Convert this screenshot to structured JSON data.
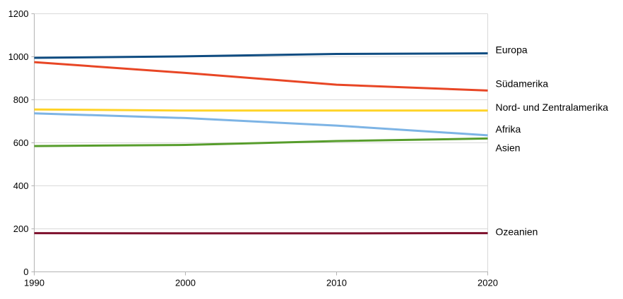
{
  "chart_data": {
    "type": "line",
    "x": [
      1990,
      2000,
      2010,
      2020
    ],
    "x_tick_labels": [
      "1990",
      "2000",
      "2010",
      "2020"
    ],
    "y_ticks": [
      0,
      200,
      400,
      600,
      800,
      1000,
      1200
    ],
    "y_tick_labels": [
      "0",
      "200",
      "400",
      "600",
      "800",
      "1000",
      "1200"
    ],
    "xlim": [
      1990,
      2020
    ],
    "ylim": [
      0,
      1200
    ],
    "title": "",
    "xlabel": "",
    "ylabel": "",
    "grid": "horizontal-only",
    "legend_position": "labels-at-line-ends-right",
    "series": [
      {
        "name": "Europa",
        "color": "#0f4c81",
        "values": [
          995,
          1002,
          1013,
          1016
        ],
        "label_dy": -5
      },
      {
        "name": "Südamerika",
        "color": "#e84625",
        "values": [
          975,
          925,
          870,
          843
        ],
        "label_dy": -10
      },
      {
        "name": "Nord- und Zentralamerika",
        "color": "#ffd327",
        "values": [
          755,
          750,
          750,
          750
        ],
        "label_dy": -5
      },
      {
        "name": "Afrika",
        "color": "#7db4e5",
        "values": [
          737,
          715,
          680,
          635
        ],
        "label_dy": -9
      },
      {
        "name": "Asien",
        "color": "#579d2c",
        "values": [
          585,
          590,
          608,
          620
        ],
        "label_dy": 13
      },
      {
        "name": "Ozeanien",
        "color": "#7e102d",
        "values": [
          180,
          179,
          179,
          180
        ],
        "label_dy": -2
      }
    ]
  },
  "colors": {
    "background": "#ffffff",
    "gridline": "#d9d9d9",
    "axis": "#b3b3b3",
    "text": "#000000"
  }
}
